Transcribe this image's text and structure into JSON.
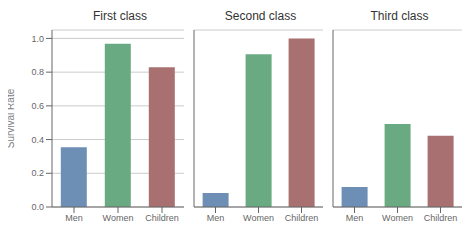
{
  "chart_data": [
    {
      "type": "bar",
      "title": "First class",
      "categories": [
        "Men",
        "Women",
        "Children"
      ],
      "values": [
        0.355,
        0.968,
        0.829
      ],
      "colors": [
        "#6d8fb5",
        "#6aaa82",
        "#a87070"
      ],
      "ylabel": "Survival Rate",
      "ylim": [
        0.0,
        1.05
      ],
      "yticks": [
        {
          "value": 0.0,
          "label": "0.0"
        },
        0.2,
        0.4,
        0.6,
        0.8,
        {
          "value": 1.0,
          "label": "1.0"
        }
      ],
      "grid": true
    },
    {
      "type": "bar",
      "title": "Second class",
      "categories": [
        "Men",
        "Women",
        "Children"
      ],
      "values": [
        0.083,
        0.906,
        1.0
      ],
      "colors": [
        "#6d8fb5",
        "#6aaa82",
        "#a87070"
      ],
      "ylim": [
        0.0,
        1.05
      ],
      "yticks": [
        {
          "value": 0.0,
          "label": "0.0"
        },
        0.2,
        0.4,
        0.6,
        0.8,
        {
          "value": 1.0,
          "label": "1.0"
        }
      ],
      "grid": true,
      "tick_labels": "x"
    },
    {
      "type": "bar",
      "title": "Third class",
      "categories": [
        "Men",
        "Women",
        "Children"
      ],
      "values": [
        0.119,
        0.492,
        0.423
      ],
      "colors": [
        "#6d8fb5",
        "#6aaa82",
        "#a87070"
      ],
      "ylim": [
        0.0,
        1.05
      ],
      "yticks": [
        {
          "value": 0.0,
          "label": "0.0"
        },
        0.2,
        0.4,
        0.6,
        0.8,
        {
          "value": 1.0,
          "label": "1.0"
        }
      ],
      "grid": true,
      "tick_labels": "x"
    }
  ]
}
